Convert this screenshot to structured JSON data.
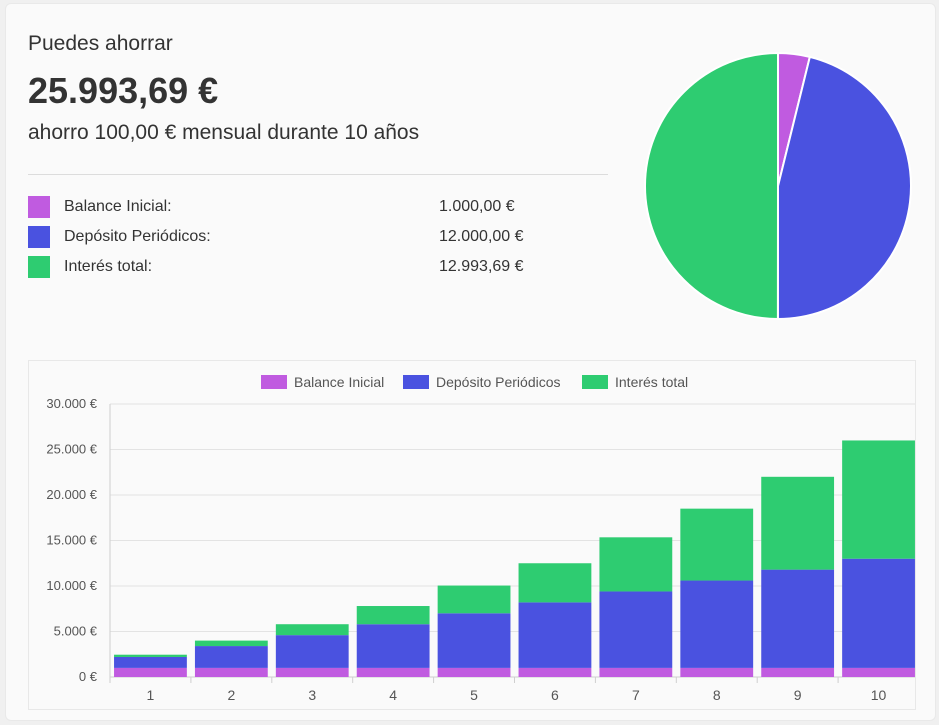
{
  "summary": {
    "headline": "Puedes ahorrar",
    "total": "25.993,69 €",
    "description": "ahorro 100,00 € mensual durante 10 años",
    "items": [
      {
        "label": "Balance Inicial:",
        "value": "1.000,00 €",
        "color": "#c05be0"
      },
      {
        "label": "Depósito Periódicos:",
        "value": "12.000,00 €",
        "color": "#4a52e0"
      },
      {
        "label": "Interés total:",
        "value": "12.993,69 €",
        "color": "#2ecc71"
      }
    ]
  },
  "colors": {
    "initial": "#c05be0",
    "deposits": "#4a52e0",
    "interest": "#2ecc71"
  },
  "chart_data": [
    {
      "type": "pie",
      "categories": [
        "Balance Inicial",
        "Depósito Periódicos",
        "Interés total"
      ],
      "values": [
        1000.0,
        12000.0,
        12993.69
      ]
    },
    {
      "type": "bar",
      "stacked": true,
      "categories": [
        "1",
        "2",
        "3",
        "4",
        "5",
        "6",
        "7",
        "8",
        "9",
        "10"
      ],
      "series": [
        {
          "name": "Balance Inicial",
          "values": [
            1000,
            1000,
            1000,
            1000,
            1000,
            1000,
            1000,
            1000,
            1000,
            1000
          ]
        },
        {
          "name": "Depósito Periódicos",
          "values": [
            1200,
            2400,
            3600,
            4800,
            6000,
            7200,
            8400,
            9600,
            10800,
            12000
          ]
        },
        {
          "name": "Interés total",
          "values": [
            250,
            600,
            1200,
            2000,
            3050,
            4300,
            5950,
            7900,
            10200,
            12993.69
          ]
        }
      ],
      "yticks": [
        "0 €",
        "5.000 €",
        "10.000 €",
        "15.000 €",
        "20.000 €",
        "25.000 €",
        "30.000 €"
      ],
      "ylim": [
        0,
        30000
      ],
      "grid": true,
      "legend": "top-center"
    }
  ]
}
